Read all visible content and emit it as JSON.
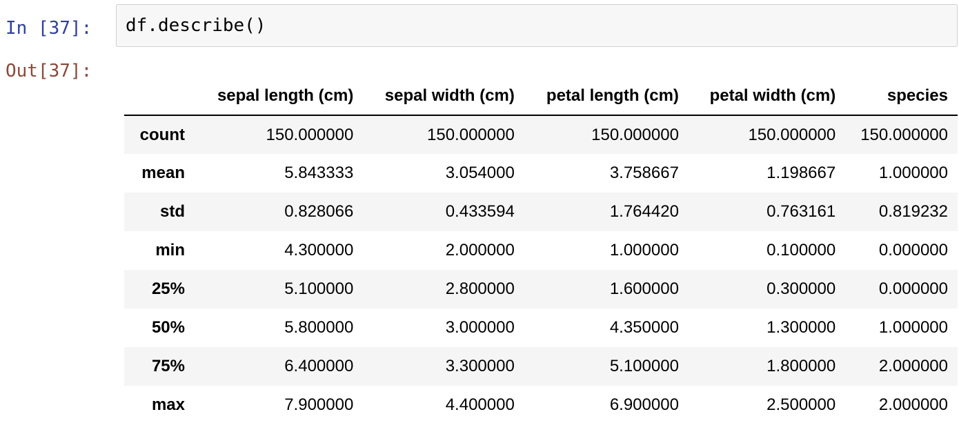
{
  "cell": {
    "in_prompt": "In [37]:",
    "out_prompt": "Out[37]:",
    "code": "df.describe()"
  },
  "table": {
    "columns": [
      "sepal length (cm)",
      "sepal width (cm)",
      "petal length (cm)",
      "petal width (cm)",
      "species"
    ],
    "rows": [
      {
        "label": "count",
        "values": [
          "150.000000",
          "150.000000",
          "150.000000",
          "150.000000",
          "150.000000"
        ]
      },
      {
        "label": "mean",
        "values": [
          "5.843333",
          "3.054000",
          "3.758667",
          "1.198667",
          "1.000000"
        ]
      },
      {
        "label": "std",
        "values": [
          "0.828066",
          "0.433594",
          "1.764420",
          "0.763161",
          "0.819232"
        ]
      },
      {
        "label": "min",
        "values": [
          "4.300000",
          "2.000000",
          "1.000000",
          "0.100000",
          "0.000000"
        ]
      },
      {
        "label": "25%",
        "values": [
          "5.100000",
          "2.800000",
          "1.600000",
          "0.300000",
          "0.000000"
        ]
      },
      {
        "label": "50%",
        "values": [
          "5.800000",
          "3.000000",
          "4.350000",
          "1.300000",
          "1.000000"
        ]
      },
      {
        "label": "75%",
        "values": [
          "6.400000",
          "3.300000",
          "5.100000",
          "1.800000",
          "2.000000"
        ]
      },
      {
        "label": "max",
        "values": [
          "7.900000",
          "4.400000",
          "6.900000",
          "2.500000",
          "2.000000"
        ]
      }
    ]
  }
}
